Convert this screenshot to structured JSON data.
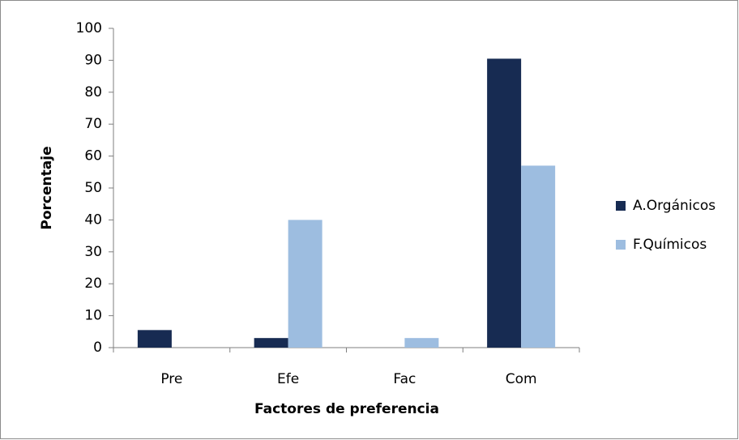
{
  "chart_data": {
    "type": "bar",
    "x_label": "Factores de preferencia",
    "y_label": "Porcentaje",
    "categories": [
      "Pre",
      "Efe",
      "Fac",
      "Com"
    ],
    "series": [
      {
        "name": "A.Orgánicos",
        "color": "#172b52",
        "values": [
          5.5,
          3,
          0,
          90.5
        ]
      },
      {
        "name": "F.Químicos",
        "color": "#9dbde0",
        "values": [
          0,
          40,
          3,
          57
        ]
      }
    ],
    "ylim": [
      0,
      100
    ],
    "yticks": [
      0,
      10,
      20,
      30,
      40,
      50,
      60,
      70,
      80,
      90,
      100
    ],
    "grid": false,
    "legend": "right"
  }
}
